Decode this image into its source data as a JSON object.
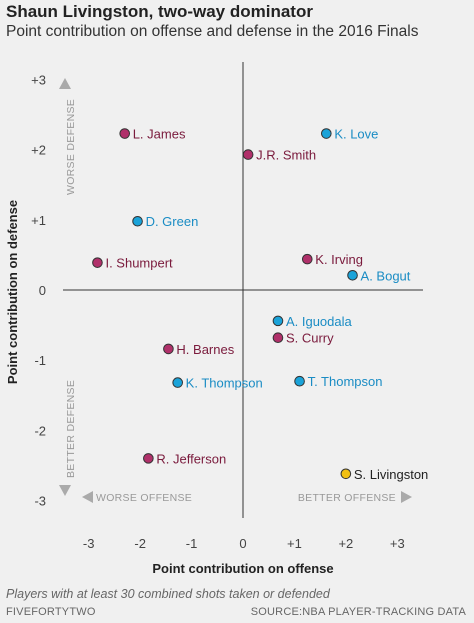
{
  "chart_data": {
    "type": "scatter",
    "title": "Shaun Livingston, two-way dominator",
    "subtitle": "Point contribution on offense and defense in the 2016 Finals",
    "xlabel": "Point contribution on offense",
    "ylabel": "Point contribution on defense",
    "xlim": [
      -3.5,
      3.5
    ],
    "ylim": [
      -3.25,
      3.25
    ],
    "x_ticks": [
      {
        "value": -3,
        "label": "-3"
      },
      {
        "value": -2,
        "label": "-2"
      },
      {
        "value": -1,
        "label": "-1"
      },
      {
        "value": 0,
        "label": "0"
      },
      {
        "value": 1,
        "label": "+1"
      },
      {
        "value": 2,
        "label": "+2"
      },
      {
        "value": 3,
        "label": "+3"
      }
    ],
    "y_ticks": [
      {
        "value": 3,
        "label": "+3"
      },
      {
        "value": 2,
        "label": "+2"
      },
      {
        "value": 1,
        "label": "+1"
      },
      {
        "value": 0,
        "label": "0"
      },
      {
        "value": -1,
        "label": "-1"
      },
      {
        "value": -2,
        "label": "-2"
      },
      {
        "value": -3,
        "label": "-3"
      }
    ],
    "grid": false,
    "annotations": {
      "worse_defense": "WORSE DEFENSE",
      "better_defense": "BETTER DEFENSE",
      "worse_offense": "WORSE OFFENSE",
      "better_offense": "BETTER OFFENSE"
    },
    "colors": {
      "cavaliers": "#b0306a",
      "warriors": "#1aa3d9",
      "highlight": "#f2c012",
      "cavaliers_label": "#7a1a3c",
      "warriors_label": "#1a8cc4",
      "highlight_label": "#222222"
    },
    "points": [
      {
        "name": "L. James",
        "x": -2.3,
        "y": 2.23,
        "group": "cavaliers"
      },
      {
        "name": "J.R. Smith",
        "x": 0.1,
        "y": 1.93,
        "group": "cavaliers"
      },
      {
        "name": "K. Love",
        "x": 1.62,
        "y": 2.23,
        "group": "warriors"
      },
      {
        "name": "D. Green",
        "x": -2.05,
        "y": 0.98,
        "group": "warriors"
      },
      {
        "name": "I. Shumpert",
        "x": -2.83,
        "y": 0.39,
        "group": "cavaliers"
      },
      {
        "name": "K. Irving",
        "x": 1.25,
        "y": 0.44,
        "group": "cavaliers"
      },
      {
        "name": "A. Bogut",
        "x": 2.13,
        "y": 0.21,
        "group": "warriors"
      },
      {
        "name": "A. Iguodala",
        "x": 0.68,
        "y": -0.44,
        "group": "warriors"
      },
      {
        "name": "S. Curry",
        "x": 0.68,
        "y": -0.68,
        "group": "cavaliers"
      },
      {
        "name": "H. Barnes",
        "x": -1.45,
        "y": -0.84,
        "group": "cavaliers"
      },
      {
        "name": "K. Thompson",
        "x": -1.27,
        "y": -1.32,
        "group": "warriors"
      },
      {
        "name": "T. Thompson",
        "x": 1.1,
        "y": -1.3,
        "group": "warriors"
      },
      {
        "name": "R. Jefferson",
        "x": -1.84,
        "y": -2.4,
        "group": "cavaliers"
      },
      {
        "name": "S. Livingston",
        "x": 2.0,
        "y": -2.62,
        "group": "highlight"
      }
    ]
  },
  "footnote": "Players with at least 30 combined shots taken or defended",
  "credit_left": "FIVEFORTYTWO",
  "credit_right": "SOURCE:NBA PLAYER-TRACKING DATA"
}
